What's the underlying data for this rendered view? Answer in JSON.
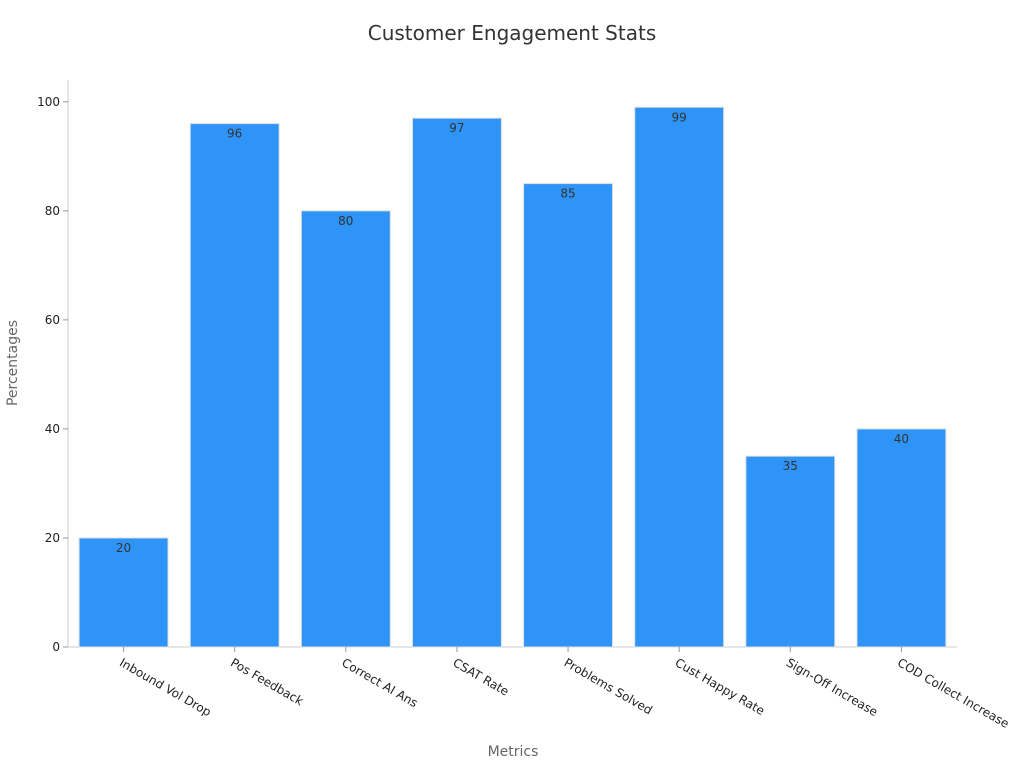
{
  "chart_data": {
    "type": "bar",
    "title": "Customer Engagement Stats",
    "xlabel": "Metrics",
    "ylabel": "Percentages",
    "categories": [
      "Inbound Vol Drop",
      "Pos Feedback",
      "Correct AI Ans",
      "CSAT Rate",
      "Problems Solved",
      "Cust Happy Rate",
      "Sign-Off Increase",
      "COD Collect Increase"
    ],
    "values": [
      20,
      96,
      80,
      97,
      85,
      99,
      35,
      40
    ],
    "ylim": [
      0,
      104
    ],
    "yticks": [
      0,
      20,
      40,
      60,
      80,
      100
    ],
    "grid": false,
    "bar_color": "#2f94f8",
    "bar_edge_color": "#dddddd"
  }
}
